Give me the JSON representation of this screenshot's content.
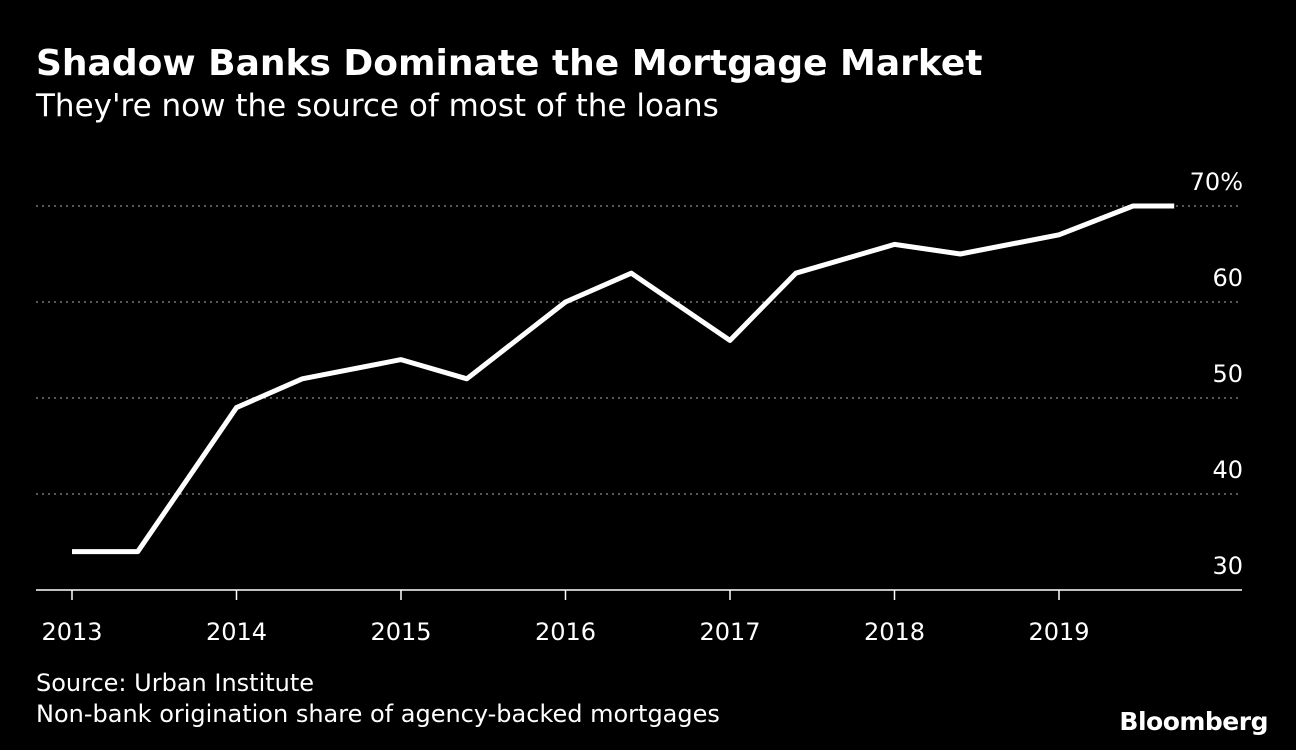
{
  "header": {
    "title": "Shadow Banks Dominate the Mortgage Market",
    "subtitle": "They're now the source of most of the loans"
  },
  "footer": {
    "source": "Source: Urban Institute",
    "note": "Non-bank origination share of agency-backed mortgages",
    "brand": "Bloomberg"
  },
  "chart_data": {
    "type": "line",
    "title": "Shadow Banks Dominate the Mortgage Market",
    "subtitle": "They're now the source of most of the loans",
    "xlabel": "",
    "ylabel": "",
    "x_ticks": [
      "2013",
      "2014",
      "2015",
      "2016",
      "2017",
      "2018",
      "2019"
    ],
    "y_ticks": [
      {
        "value": 30,
        "label": "30"
      },
      {
        "value": 40,
        "label": "40"
      },
      {
        "value": 50,
        "label": "50"
      },
      {
        "value": 60,
        "label": "60"
      },
      {
        "value": 70,
        "label": "70%"
      }
    ],
    "ylim": [
      30,
      70
    ],
    "xlim": [
      2013,
      2019.85
    ],
    "grid": true,
    "line_color": "#ffffff",
    "series": [
      {
        "x": [
          2013.0,
          2013.4,
          2014.0,
          2014.4,
          2015.0,
          2015.4,
          2016.0,
          2016.4,
          2017.0,
          2017.4,
          2018.0,
          2018.4,
          2019.0,
          2019.45,
          2019.7
        ],
        "values": [
          34,
          34,
          49,
          52,
          54,
          52,
          60,
          63,
          56,
          63,
          66,
          65,
          67,
          70,
          70
        ]
      }
    ]
  }
}
